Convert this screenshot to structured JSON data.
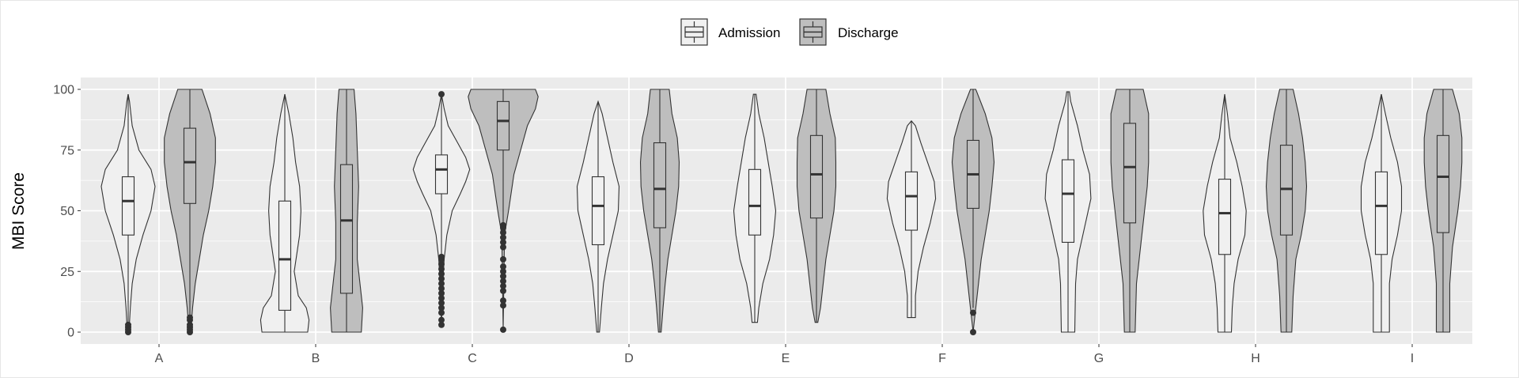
{
  "chart_data": {
    "type": "violin",
    "title": "",
    "xlabel": "",
    "ylabel": "MBI Score",
    "ylim": [
      -5,
      105
    ],
    "yticks": [
      0,
      25,
      50,
      75,
      100
    ],
    "ytick_labels": [
      "0",
      "25",
      "50",
      "75",
      "100"
    ],
    "grid": true,
    "legend_position": "top",
    "legend": [
      {
        "name": "Admission",
        "color": "#f0f0f0"
      },
      {
        "name": "Discharge",
        "color": "#bebebe"
      }
    ],
    "categories": [
      "A",
      "B",
      "C",
      "D",
      "E",
      "F",
      "G",
      "H",
      "I"
    ],
    "series": [
      {
        "name": "Admission",
        "color": "#f0f0f0",
        "boxes": [
          {
            "q1": 40,
            "median": 54,
            "q3": 64,
            "lo": 4,
            "hi": 98,
            "outliers": [
              0,
              1,
              2,
              3
            ]
          },
          {
            "q1": 9,
            "median": 30,
            "q3": 54,
            "lo": 0,
            "hi": 98,
            "outliers": []
          },
          {
            "q1": 57,
            "median": 67,
            "q3": 73,
            "lo": 32,
            "hi": 97,
            "outliers": [
              3,
              5,
              8,
              10,
              12,
              14,
              16,
              18,
              20,
              22,
              24,
              26,
              28,
              30,
              31,
              98
            ]
          },
          {
            "q1": 36,
            "median": 52,
            "q3": 64,
            "lo": 0,
            "hi": 95,
            "outliers": []
          },
          {
            "q1": 40,
            "median": 52,
            "q3": 67,
            "lo": 4,
            "hi": 98,
            "outliers": []
          },
          {
            "q1": 42,
            "median": 56,
            "q3": 66,
            "lo": 6,
            "hi": 87,
            "outliers": []
          },
          {
            "q1": 37,
            "median": 57,
            "q3": 71,
            "lo": 0,
            "hi": 99,
            "outliers": []
          },
          {
            "q1": 32,
            "median": 49,
            "q3": 63,
            "lo": 0,
            "hi": 98,
            "outliers": []
          },
          {
            "q1": 32,
            "median": 52,
            "q3": 66,
            "lo": 0,
            "hi": 98,
            "outliers": []
          }
        ],
        "density": [
          [
            [
              0,
              0.03
            ],
            [
              10,
              0.08
            ],
            [
              20,
              0.15
            ],
            [
              30,
              0.3
            ],
            [
              40,
              0.55
            ],
            [
              50,
              0.85
            ],
            [
              60,
              1.0
            ],
            [
              67,
              0.85
            ],
            [
              75,
              0.4
            ],
            [
              85,
              0.15
            ],
            [
              95,
              0.05
            ],
            [
              98,
              0
            ]
          ],
          [
            [
              0,
              0.85
            ],
            [
              5,
              0.9
            ],
            [
              10,
              0.8
            ],
            [
              15,
              0.5
            ],
            [
              25,
              0.35
            ],
            [
              40,
              0.55
            ],
            [
              50,
              0.6
            ],
            [
              60,
              0.55
            ],
            [
              70,
              0.4
            ],
            [
              80,
              0.3
            ],
            [
              90,
              0.15
            ],
            [
              98,
              0
            ]
          ],
          [
            [
              3,
              0
            ],
            [
              20,
              0.05
            ],
            [
              30,
              0.1
            ],
            [
              40,
              0.2
            ],
            [
              50,
              0.4
            ],
            [
              57,
              0.7
            ],
            [
              62,
              0.9
            ],
            [
              67,
              1.05
            ],
            [
              72,
              0.9
            ],
            [
              78,
              0.6
            ],
            [
              85,
              0.25
            ],
            [
              92,
              0.1
            ],
            [
              98,
              0
            ]
          ],
          [
            [
              0,
              0.05
            ],
            [
              10,
              0.12
            ],
            [
              20,
              0.2
            ],
            [
              30,
              0.35
            ],
            [
              40,
              0.55
            ],
            [
              50,
              0.75
            ],
            [
              60,
              0.78
            ],
            [
              70,
              0.55
            ],
            [
              80,
              0.35
            ],
            [
              90,
              0.15
            ],
            [
              95,
              0
            ]
          ],
          [
            [
              4,
              0.1
            ],
            [
              10,
              0.15
            ],
            [
              20,
              0.3
            ],
            [
              30,
              0.55
            ],
            [
              40,
              0.7
            ],
            [
              50,
              0.78
            ],
            [
              60,
              0.65
            ],
            [
              70,
              0.5
            ],
            [
              80,
              0.35
            ],
            [
              90,
              0.15
            ],
            [
              98,
              0.05
            ]
          ],
          [
            [
              6,
              0.15
            ],
            [
              15,
              0.15
            ],
            [
              25,
              0.25
            ],
            [
              35,
              0.45
            ],
            [
              45,
              0.7
            ],
            [
              55,
              0.9
            ],
            [
              62,
              0.85
            ],
            [
              70,
              0.6
            ],
            [
              78,
              0.35
            ],
            [
              85,
              0.15
            ],
            [
              87,
              0
            ]
          ],
          [
            [
              0,
              0.25
            ],
            [
              20,
              0.28
            ],
            [
              30,
              0.35
            ],
            [
              40,
              0.55
            ],
            [
              50,
              0.75
            ],
            [
              55,
              0.85
            ],
            [
              65,
              0.8
            ],
            [
              75,
              0.55
            ],
            [
              85,
              0.35
            ],
            [
              95,
              0.1
            ],
            [
              99,
              0.05
            ]
          ],
          [
            [
              0,
              0.25
            ],
            [
              10,
              0.28
            ],
            [
              20,
              0.35
            ],
            [
              30,
              0.5
            ],
            [
              40,
              0.75
            ],
            [
              50,
              0.8
            ],
            [
              60,
              0.65
            ],
            [
              70,
              0.45
            ],
            [
              80,
              0.2
            ],
            [
              90,
              0.1
            ],
            [
              98,
              0
            ]
          ],
          [
            [
              0,
              0.3
            ],
            [
              20,
              0.3
            ],
            [
              30,
              0.4
            ],
            [
              40,
              0.6
            ],
            [
              50,
              0.75
            ],
            [
              60,
              0.75
            ],
            [
              70,
              0.6
            ],
            [
              80,
              0.35
            ],
            [
              90,
              0.15
            ],
            [
              98,
              0
            ]
          ]
        ]
      },
      {
        "name": "Discharge",
        "color": "#bebebe",
        "boxes": [
          {
            "q1": 53,
            "median": 70,
            "q3": 84,
            "lo": 7,
            "hi": 100,
            "outliers": [
              0,
              1,
              2,
              3,
              5,
              6
            ]
          },
          {
            "q1": 16,
            "median": 46,
            "q3": 69,
            "lo": 0,
            "hi": 100,
            "outliers": []
          },
          {
            "q1": 75,
            "median": 87,
            "q3": 95,
            "lo": 45,
            "hi": 100,
            "outliers": [
              1,
              11,
              13,
              17,
              19,
              21,
              23,
              25,
              27,
              30,
              35,
              37,
              39,
              41,
              43,
              44
            ]
          },
          {
            "q1": 43,
            "median": 59,
            "q3": 78,
            "lo": 0,
            "hi": 100,
            "outliers": []
          },
          {
            "q1": 47,
            "median": 65,
            "q3": 81,
            "lo": 4,
            "hi": 100,
            "outliers": []
          },
          {
            "q1": 51,
            "median": 65,
            "q3": 79,
            "lo": 10,
            "hi": 100,
            "outliers": [
              0,
              8
            ]
          },
          {
            "q1": 45,
            "median": 68,
            "q3": 86,
            "lo": 0,
            "hi": 100,
            "outliers": []
          },
          {
            "q1": 40,
            "median": 59,
            "q3": 77,
            "lo": 0,
            "hi": 100,
            "outliers": []
          },
          {
            "q1": 41,
            "median": 64,
            "q3": 81,
            "lo": 0,
            "hi": 100,
            "outliers": []
          }
        ],
        "density": [
          [
            [
              0,
              0.03
            ],
            [
              10,
              0.1
            ],
            [
              20,
              0.2
            ],
            [
              30,
              0.35
            ],
            [
              40,
              0.5
            ],
            [
              50,
              0.7
            ],
            [
              60,
              0.85
            ],
            [
              70,
              0.95
            ],
            [
              80,
              0.95
            ],
            [
              90,
              0.75
            ],
            [
              100,
              0.45
            ]
          ],
          [
            [
              0,
              0.55
            ],
            [
              10,
              0.6
            ],
            [
              20,
              0.5
            ],
            [
              30,
              0.4
            ],
            [
              45,
              0.4
            ],
            [
              60,
              0.45
            ],
            [
              75,
              0.4
            ],
            [
              90,
              0.35
            ],
            [
              100,
              0.28
            ]
          ],
          [
            [
              1,
              0
            ],
            [
              40,
              0.05
            ],
            [
              50,
              0.2
            ],
            [
              65,
              0.4
            ],
            [
              75,
              0.65
            ],
            [
              85,
              0.9
            ],
            [
              92,
              1.2
            ],
            [
              97,
              1.3
            ],
            [
              100,
              1.2
            ]
          ],
          [
            [
              0,
              0.05
            ],
            [
              10,
              0.12
            ],
            [
              20,
              0.2
            ],
            [
              30,
              0.3
            ],
            [
              40,
              0.45
            ],
            [
              50,
              0.6
            ],
            [
              60,
              0.7
            ],
            [
              70,
              0.72
            ],
            [
              80,
              0.65
            ],
            [
              90,
              0.45
            ],
            [
              100,
              0.35
            ]
          ],
          [
            [
              4,
              0.05
            ],
            [
              10,
              0.15
            ],
            [
              20,
              0.25
            ],
            [
              30,
              0.35
            ],
            [
              40,
              0.5
            ],
            [
              50,
              0.65
            ],
            [
              60,
              0.72
            ],
            [
              70,
              0.72
            ],
            [
              80,
              0.7
            ],
            [
              90,
              0.5
            ],
            [
              100,
              0.35
            ]
          ],
          [
            [
              0,
              0
            ],
            [
              8,
              0.08
            ],
            [
              20,
              0.2
            ],
            [
              30,
              0.3
            ],
            [
              40,
              0.45
            ],
            [
              50,
              0.6
            ],
            [
              60,
              0.7
            ],
            [
              70,
              0.78
            ],
            [
              80,
              0.7
            ],
            [
              90,
              0.45
            ],
            [
              100,
              0.1
            ]
          ],
          [
            [
              0,
              0.2
            ],
            [
              20,
              0.25
            ],
            [
              30,
              0.35
            ],
            [
              40,
              0.45
            ],
            [
              50,
              0.55
            ],
            [
              60,
              0.65
            ],
            [
              70,
              0.7
            ],
            [
              80,
              0.7
            ],
            [
              90,
              0.7
            ],
            [
              100,
              0.5
            ]
          ],
          [
            [
              0,
              0.2
            ],
            [
              15,
              0.25
            ],
            [
              30,
              0.35
            ],
            [
              40,
              0.55
            ],
            [
              50,
              0.7
            ],
            [
              60,
              0.75
            ],
            [
              70,
              0.7
            ],
            [
              80,
              0.6
            ],
            [
              90,
              0.45
            ],
            [
              100,
              0.25
            ]
          ],
          [
            [
              0,
              0.25
            ],
            [
              20,
              0.25
            ],
            [
              35,
              0.35
            ],
            [
              50,
              0.55
            ],
            [
              60,
              0.65
            ],
            [
              70,
              0.7
            ],
            [
              80,
              0.7
            ],
            [
              90,
              0.6
            ],
            [
              100,
              0.35
            ]
          ]
        ]
      }
    ]
  }
}
